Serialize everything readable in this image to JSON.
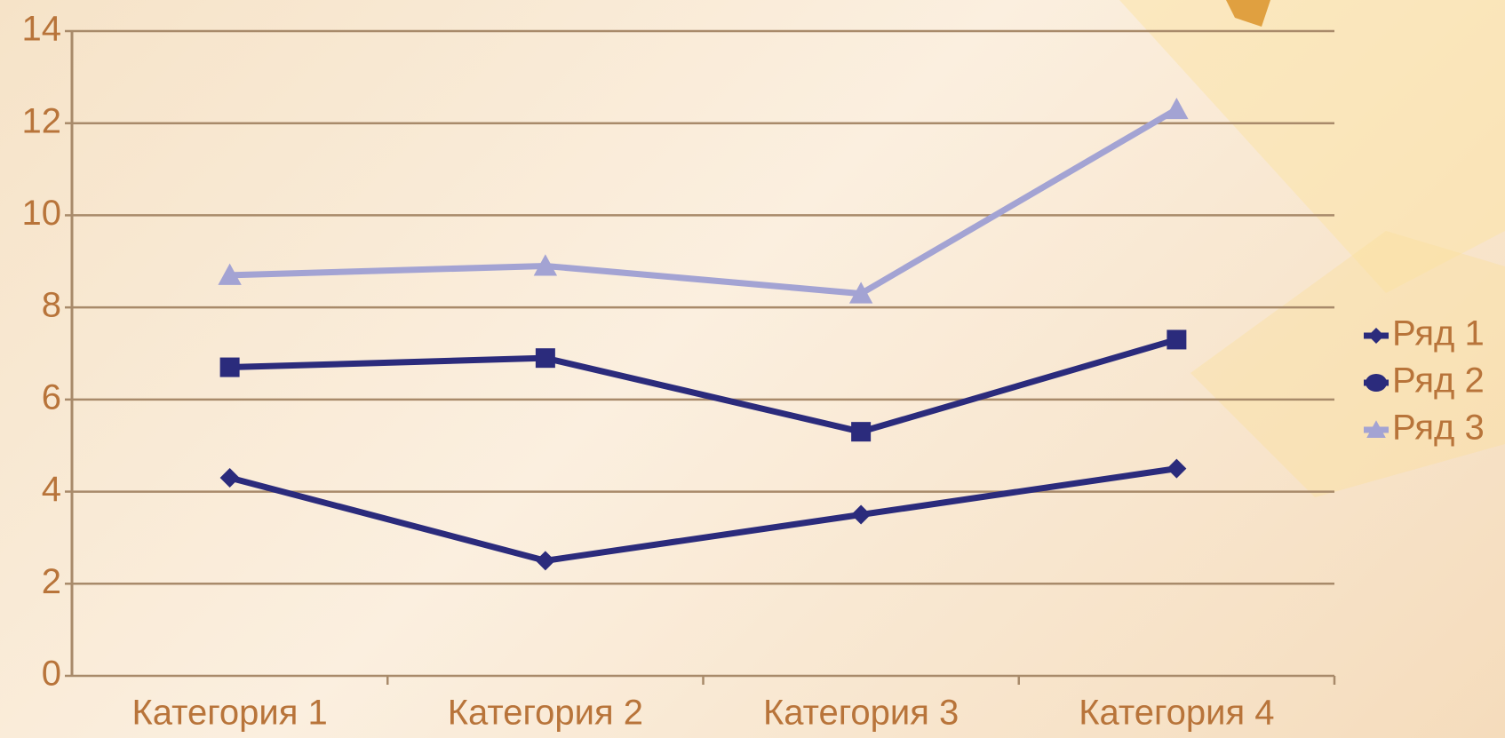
{
  "chart_data": {
    "type": "line",
    "categories": [
      "Категория 1",
      "Категория 2",
      "Категория 3",
      "Категория 4"
    ],
    "series": [
      {
        "name": "Ряд 1",
        "color": "#2b2b7c",
        "marker": "diamond",
        "values": [
          4.3,
          2.5,
          3.5,
          4.5
        ]
      },
      {
        "name": "Ряд 2",
        "color": "#2b2b7c",
        "marker": "square",
        "values": [
          6.7,
          6.9,
          5.3,
          7.3
        ]
      },
      {
        "name": "Ряд 3",
        "color": "#a3a3d3",
        "marker": "triangle",
        "values": [
          8.7,
          8.9,
          8.3,
          12.3
        ]
      }
    ],
    "ylim": [
      0,
      14
    ],
    "yticks": [
      0,
      2,
      4,
      6,
      8,
      10,
      12,
      14
    ],
    "grid": true,
    "legend": "right"
  }
}
